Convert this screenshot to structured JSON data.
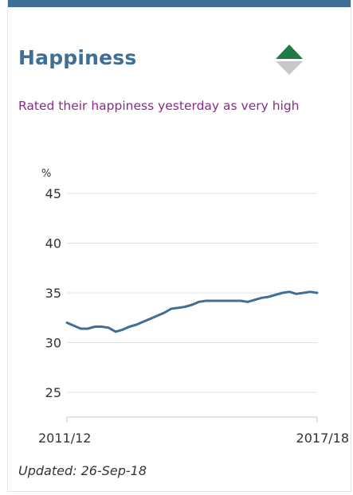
{
  "card": {
    "title": "Happiness",
    "subtitle": "Rated their happiness yesterday as very high",
    "trend_icon": "up-down-triangle-icon",
    "updated": "Updated: 26-Sep-18"
  },
  "colors": {
    "accent": "#3f6f96",
    "subtitle": "#8a2a8c",
    "trend_up": "#1f7a45",
    "trend_down": "#c8c8c8",
    "line": "#3f6f96",
    "grid": "#e0e0e0"
  },
  "chart_data": {
    "type": "line",
    "ylabel": "%",
    "ylim": [
      25,
      45
    ],
    "yticks": [
      25,
      30,
      35,
      40,
      45
    ],
    "xtick_labels": [
      "2011/12",
      "2017/18"
    ],
    "grid": true,
    "series": [
      {
        "values": [
          32.0,
          31.7,
          31.4,
          31.4,
          31.6,
          31.6,
          31.5,
          31.1,
          31.3,
          31.6,
          31.8,
          32.1,
          32.4,
          32.7,
          33.0,
          33.4,
          33.5,
          33.6,
          33.8,
          34.1,
          34.2,
          34.2,
          34.2,
          34.2,
          34.2,
          34.2,
          34.1,
          34.3,
          34.5,
          34.6,
          34.8,
          35.0,
          35.1,
          34.9,
          35.0,
          35.1,
          35.0
        ]
      }
    ]
  }
}
